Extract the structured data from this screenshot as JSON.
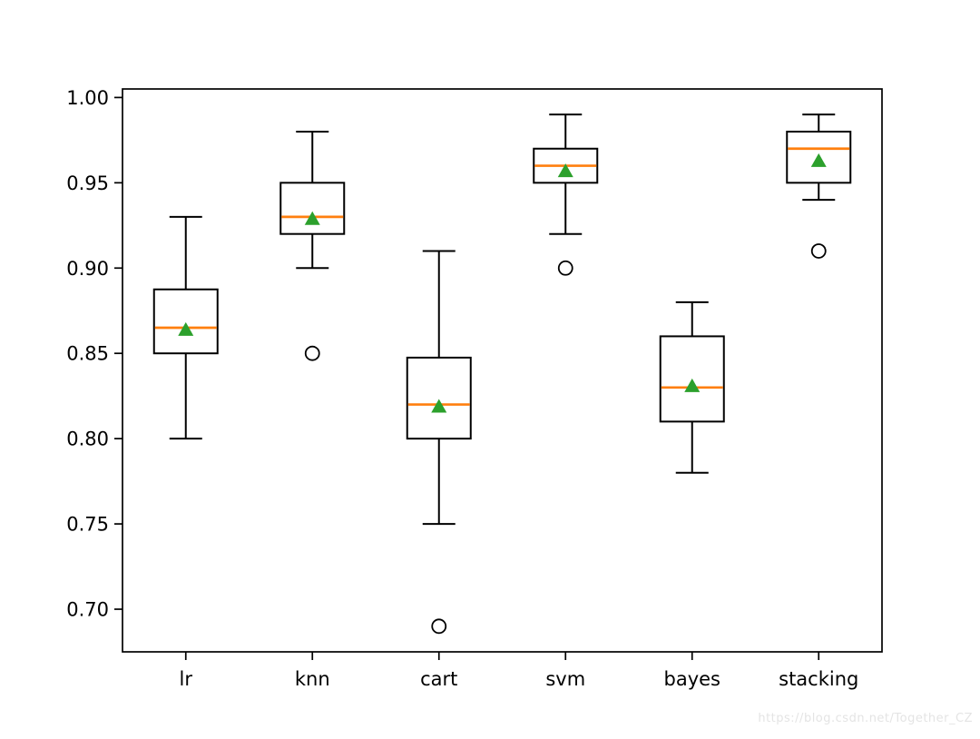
{
  "watermark": "https://blog.csdn.net/Together_CZ",
  "chart_data": {
    "type": "boxplot",
    "title": "",
    "xlabel": "",
    "ylabel": "",
    "categories": [
      "lr",
      "knn",
      "cart",
      "svm",
      "bayes",
      "stacking"
    ],
    "series": [
      {
        "name": "lr",
        "whislo": 0.8,
        "q1": 0.85,
        "med": 0.865,
        "q3": 0.8875,
        "whishi": 0.93,
        "mean": 0.864,
        "fliers": []
      },
      {
        "name": "knn",
        "whislo": 0.9,
        "q1": 0.92,
        "med": 0.93,
        "q3": 0.95,
        "whishi": 0.98,
        "mean": 0.929,
        "fliers": [
          0.85
        ]
      },
      {
        "name": "cart",
        "whislo": 0.75,
        "q1": 0.8,
        "med": 0.82,
        "q3": 0.8475,
        "whishi": 0.91,
        "mean": 0.819,
        "fliers": [
          0.69
        ]
      },
      {
        "name": "svm",
        "whislo": 0.92,
        "q1": 0.95,
        "med": 0.96,
        "q3": 0.97,
        "whishi": 0.99,
        "mean": 0.957,
        "fliers": [
          0.9
        ]
      },
      {
        "name": "bayes",
        "whislo": 0.78,
        "q1": 0.81,
        "med": 0.83,
        "q3": 0.86,
        "whishi": 0.88,
        "mean": 0.831,
        "fliers": []
      },
      {
        "name": "stacking",
        "whislo": 0.94,
        "q1": 0.95,
        "med": 0.97,
        "q3": 0.98,
        "whishi": 0.99,
        "mean": 0.963,
        "fliers": [
          0.91
        ]
      }
    ],
    "yticks": [
      0.7,
      0.75,
      0.8,
      0.85,
      0.9,
      0.95,
      1.0
    ],
    "ytick_labels": [
      "0.70",
      "0.75",
      "0.80",
      "0.85",
      "0.90",
      "0.95",
      "1.00"
    ],
    "ylim": [
      0.675,
      1.005
    ],
    "grid": false,
    "legend": null,
    "colors": {
      "median": "#ff7f0e",
      "mean": "#2ca02c",
      "line": "#000000",
      "background": "#ffffff"
    }
  }
}
